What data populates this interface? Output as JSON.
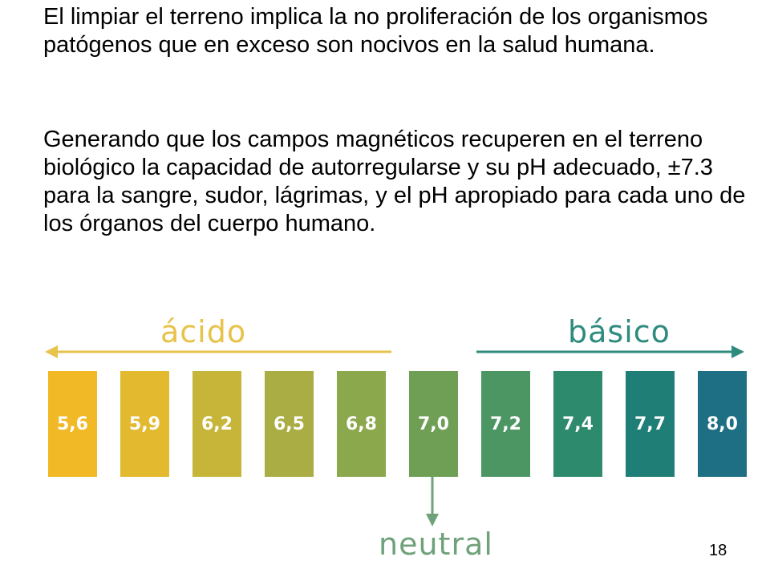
{
  "paragraphs": [
    "El limpiar el terreno implica la no proliferación de los organismos patógenos que en exceso son nocivos en la salud humana.",
    "Generando que los campos magnéticos recuperen en el terreno biológico la capacidad de autorregularse y su pH adecuado, ±7.3 para la sangre, sudor, lágrimas, y el pH apropiado para cada uno de los órganos del cuerpo humano."
  ],
  "ph_scale": {
    "acid_label": "ácido",
    "basic_label": "básico",
    "neutral_label": "neutral",
    "acid_color": "#E8C24A",
    "basic_color": "#2E8B7E",
    "neutral_color": "#6FA27A",
    "tiles": [
      {
        "value": "5,6",
        "color": "#F2B927"
      },
      {
        "value": "5,9",
        "color": "#E3B92F"
      },
      {
        "value": "6,2",
        "color": "#C7B53A"
      },
      {
        "value": "6,5",
        "color": "#AAAD44"
      },
      {
        "value": "6,8",
        "color": "#8BA84D"
      },
      {
        "value": "7,0",
        "color": "#6F9F55"
      },
      {
        "value": "7,2",
        "color": "#4C9664"
      },
      {
        "value": "7,4",
        "color": "#2E8A6C"
      },
      {
        "value": "7,7",
        "color": "#1F7E75"
      },
      {
        "value": "8,0",
        "color": "#1E6E84"
      }
    ]
  },
  "page_number": "18"
}
